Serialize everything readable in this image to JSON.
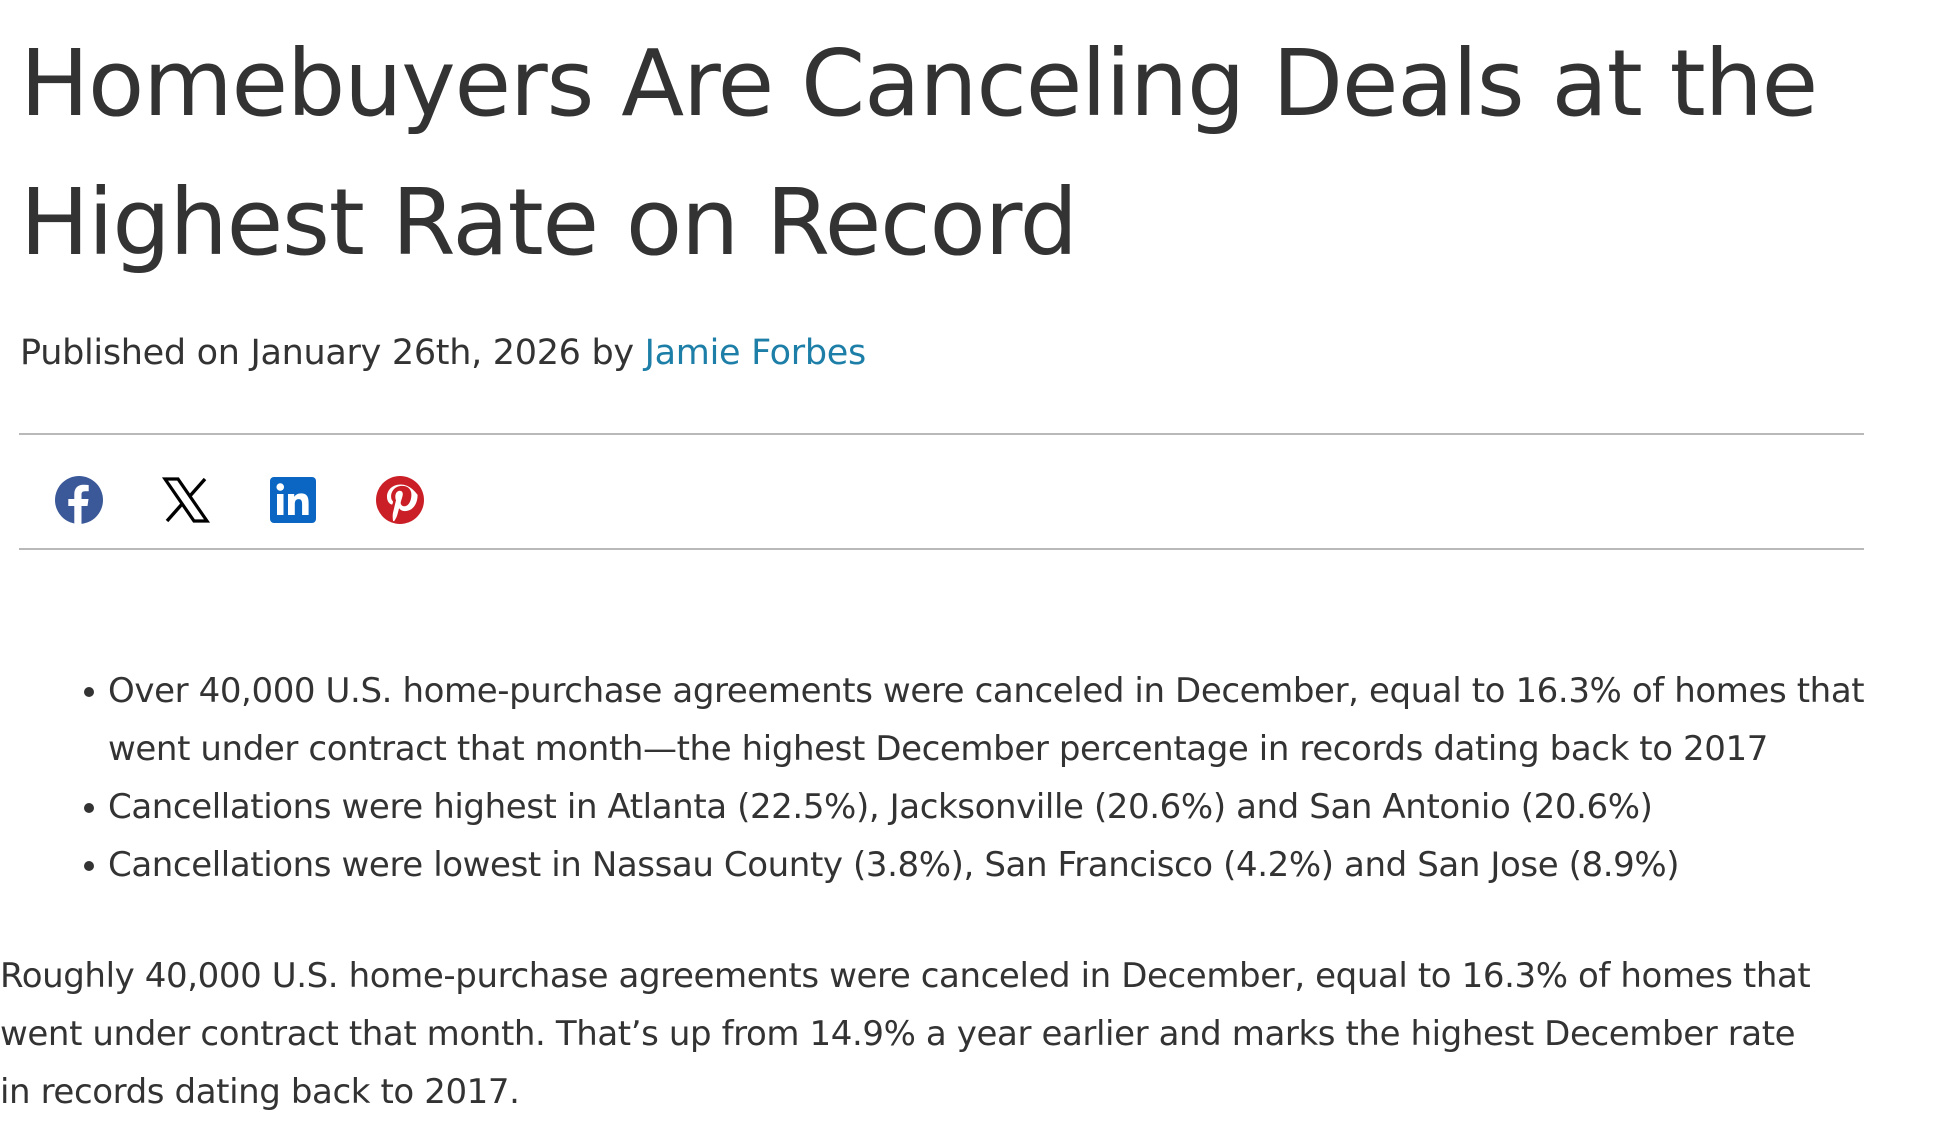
{
  "article": {
    "title": "Homebuyers Are Canceling Deals at the Highest Rate on Record",
    "byline": {
      "prefix": "Published on January 26th, 2026 by ",
      "author": "Jamie Forbes"
    },
    "share": [
      {
        "name": "facebook",
        "icon": "facebook-icon",
        "color": "#3b5998"
      },
      {
        "name": "x",
        "icon": "x-icon",
        "color": "#000000"
      },
      {
        "name": "linkedin",
        "icon": "linkedin-icon",
        "color": "#0a66c2"
      },
      {
        "name": "pinterest",
        "icon": "pinterest-icon",
        "color": "#cb1f27"
      }
    ],
    "bullets": [
      "Over 40,000 U.S. home-purchase agreements were canceled in December, equal to 16.3% of homes that went under contract that month—the highest December percentage in records dating back to 2017",
      "Cancellations were highest in Atlanta (22.5%), Jacksonville (20.6%) and San Antonio (20.6%)",
      "Cancellations were lowest in Nassau County (3.8%), San Francisco (4.2%) and San Jose (8.9%)"
    ],
    "paragraph": "Roughly 40,000 U.S. home-purchase agreements were canceled in December, equal to 16.3% of homes that went under contract that month. That’s up from 14.9% a year earlier and marks the highest December rate in records dating back to 2017."
  },
  "colors": {
    "text": "#333333",
    "link": "#1d7fa8",
    "divider": "#b9b9b9"
  }
}
